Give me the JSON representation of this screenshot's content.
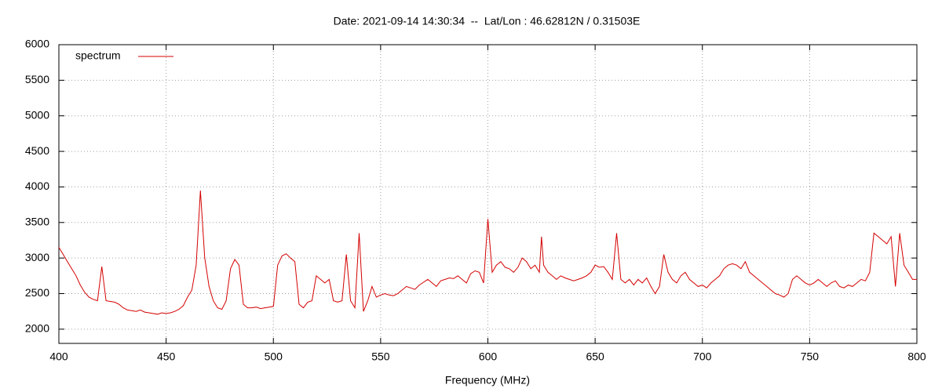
{
  "chart_data": {
    "type": "line",
    "title": "Date: 2021-09-14 14:30:34  --  Lat/Lon : 46.62812N / 0.31503E",
    "x_label": "Frequency (MHz)",
    "xlim": [
      400,
      800
    ],
    "xticks": [
      400,
      450,
      500,
      550,
      600,
      650,
      700,
      750,
      800
    ],
    "ylim": [
      1800,
      6000
    ],
    "yticks": [
      2000,
      2500,
      3000,
      3500,
      4000,
      4500,
      5000,
      5500,
      6000
    ],
    "grid": true,
    "legend": "top-left",
    "x": [
      400,
      402,
      404,
      406,
      408,
      410,
      412,
      414,
      416,
      418,
      420,
      422,
      424,
      426,
      428,
      430,
      432,
      434,
      436,
      438,
      440,
      442,
      444,
      446,
      448,
      450,
      452,
      454,
      456,
      458,
      460,
      462,
      464,
      466,
      468,
      470,
      472,
      474,
      476,
      478,
      480,
      482,
      484,
      486,
      488,
      490,
      492,
      494,
      496,
      498,
      500,
      502,
      504,
      506,
      508,
      510,
      512,
      514,
      516,
      518,
      520,
      522,
      524,
      526,
      528,
      530,
      532,
      534,
      536,
      538,
      540,
      542,
      544,
      546,
      548,
      550,
      552,
      554,
      556,
      558,
      560,
      562,
      564,
      566,
      568,
      570,
      572,
      574,
      576,
      578,
      580,
      582,
      584,
      586,
      588,
      590,
      592,
      594,
      596,
      598,
      600,
      602,
      604,
      606,
      608,
      610,
      612,
      614,
      616,
      618,
      620,
      622,
      624,
      625,
      626,
      628,
      630,
      632,
      634,
      636,
      638,
      640,
      642,
      644,
      646,
      648,
      650,
      652,
      654,
      656,
      658,
      660,
      662,
      664,
      666,
      668,
      670,
      672,
      674,
      676,
      678,
      680,
      682,
      684,
      686,
      688,
      690,
      692,
      694,
      696,
      698,
      700,
      702,
      704,
      706,
      708,
      710,
      712,
      714,
      716,
      718,
      720,
      722,
      724,
      726,
      728,
      730,
      732,
      734,
      736,
      738,
      740,
      742,
      744,
      746,
      748,
      750,
      752,
      754,
      756,
      758,
      760,
      762,
      764,
      766,
      768,
      770,
      772,
      774,
      776,
      778,
      780,
      782,
      784,
      786,
      788,
      790,
      792,
      794,
      796,
      798,
      800
    ],
    "series": [
      {
        "name": "spectrum",
        "color": "#d40000",
        "values": [
          3150,
          3050,
          2950,
          2850,
          2750,
          2620,
          2520,
          2450,
          2420,
          2400,
          2880,
          2400,
          2390,
          2380,
          2350,
          2300,
          2270,
          2260,
          2250,
          2270,
          2240,
          2230,
          2220,
          2210,
          2230,
          2220,
          2230,
          2250,
          2280,
          2330,
          2450,
          2550,
          2900,
          3950,
          3000,
          2600,
          2400,
          2300,
          2280,
          2400,
          2850,
          2980,
          2900,
          2350,
          2300,
          2300,
          2310,
          2290,
          2300,
          2310,
          2320,
          2900,
          3030,
          3060,
          3000,
          2950,
          2350,
          2300,
          2380,
          2400,
          2750,
          2700,
          2650,
          2700,
          2400,
          2380,
          2400,
          3050,
          2400,
          2300,
          3350,
          2250,
          2400,
          2600,
          2450,
          2480,
          2500,
          2480,
          2470,
          2500,
          2550,
          2600,
          2580,
          2560,
          2620,
          2660,
          2700,
          2650,
          2600,
          2680,
          2700,
          2720,
          2710,
          2750,
          2700,
          2650,
          2780,
          2820,
          2800,
          2650,
          3550,
          2800,
          2900,
          2950,
          2870,
          2850,
          2800,
          2870,
          3000,
          2950,
          2850,
          2900,
          2800,
          3300,
          2900,
          2800,
          2750,
          2700,
          2750,
          2720,
          2700,
          2680,
          2700,
          2720,
          2750,
          2800,
          2900,
          2870,
          2880,
          2800,
          2700,
          3350,
          2700,
          2650,
          2700,
          2620,
          2700,
          2650,
          2720,
          2600,
          2500,
          2600,
          3050,
          2800,
          2700,
          2650,
          2750,
          2800,
          2700,
          2650,
          2600,
          2620,
          2580,
          2650,
          2700,
          2750,
          2850,
          2900,
          2920,
          2900,
          2850,
          2950,
          2800,
          2750,
          2700,
          2650,
          2600,
          2550,
          2500,
          2480,
          2450,
          2500,
          2700,
          2750,
          2700,
          2650,
          2620,
          2650,
          2700,
          2650,
          2600,
          2650,
          2680,
          2600,
          2580,
          2620,
          2600,
          2650,
          2700,
          2680,
          2800,
          3350,
          3300,
          3250,
          3200,
          3300,
          2600,
          3350,
          2900,
          2800,
          2700,
          2700
        ]
      }
    ]
  }
}
